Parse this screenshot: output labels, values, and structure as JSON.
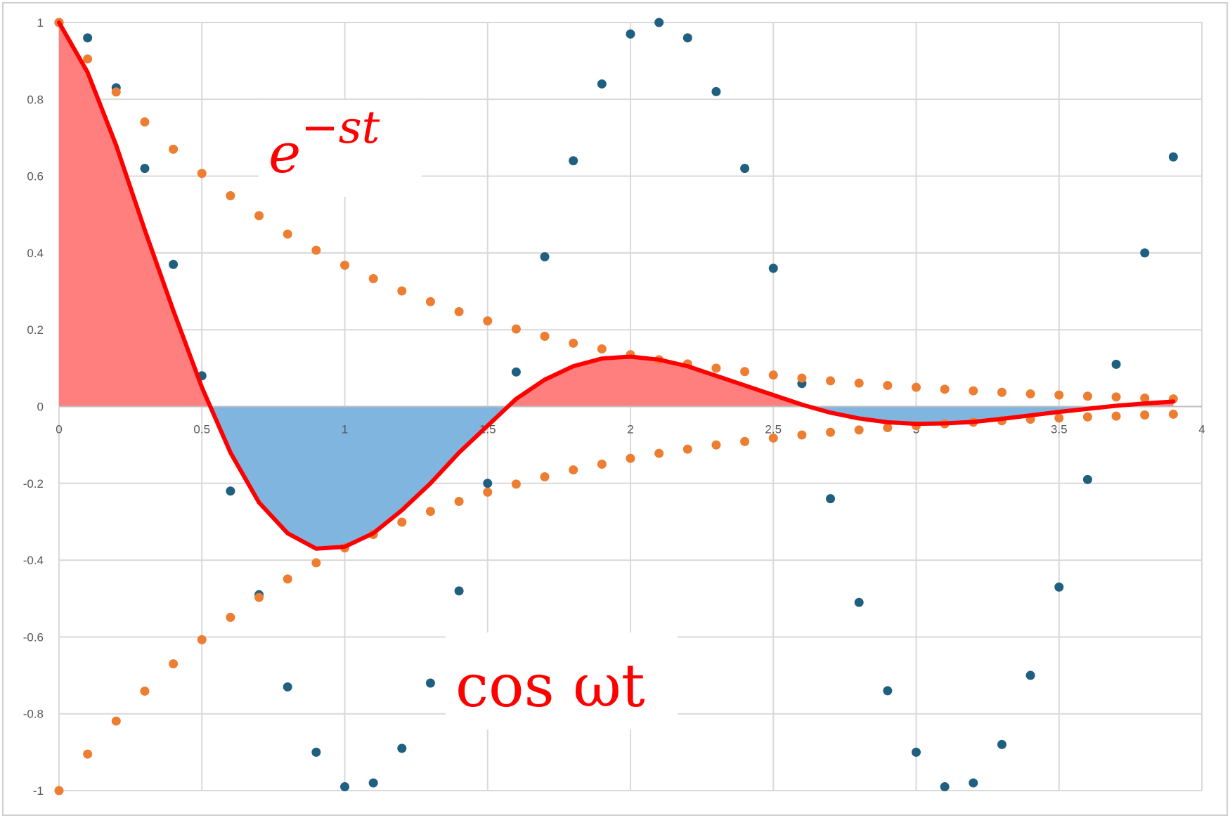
{
  "chart_data": {
    "type": "scatter",
    "xlim": [
      0,
      4
    ],
    "ylim": [
      -1,
      1
    ],
    "x_ticks": [
      "0",
      "0.5",
      "1",
      "1.5",
      "2",
      "2.5",
      "3",
      "3.5",
      "4"
    ],
    "y_ticks": [
      "1",
      "0.8",
      "0.6",
      "0.4",
      "0.2",
      "0",
      "-0.2",
      "-0.4",
      "-0.6",
      "-0.8",
      "-1"
    ],
    "grid": true,
    "legend": "none",
    "annotations": [
      {
        "text": "e",
        "superscript": "−st"
      },
      {
        "text": "cos ωt"
      }
    ],
    "colors": {
      "product_line": "#ff0000",
      "positive_fill": "#ff7f7f",
      "negative_fill": "#7fb5df",
      "cosine_points": "#1f5f7f",
      "envelope_points": "#ed7d31",
      "gridline": "#d9d9d9"
    },
    "series": [
      {
        "marker": "dot",
        "color": "#1f5f7f",
        "x": [
          0,
          0.1,
          0.2,
          0.3,
          0.4,
          0.5,
          0.6,
          0.7,
          0.8,
          0.9,
          1.0,
          1.1,
          1.2,
          1.3,
          1.4,
          1.5,
          1.6,
          1.7,
          1.8,
          1.9,
          2.0,
          2.1,
          2.2,
          2.3,
          2.4,
          2.5,
          2.6,
          2.7,
          2.8,
          2.9,
          3.0,
          3.1,
          3.2,
          3.3,
          3.4,
          3.5,
          3.6,
          3.7,
          3.8,
          3.9
        ],
        "y": [
          1,
          0.96,
          0.83,
          0.62,
          0.37,
          0.08,
          -0.22,
          -0.49,
          -0.73,
          -0.9,
          -0.99,
          -0.98,
          -0.89,
          -0.72,
          -0.48,
          -0.2,
          0.09,
          0.39,
          0.64,
          0.84,
          0.97,
          1.0,
          0.96,
          0.82,
          0.62,
          0.36,
          0.06,
          -0.24,
          -0.51,
          -0.74,
          -0.9,
          -0.99,
          -0.98,
          -0.88,
          -0.7,
          -0.47,
          -0.19,
          0.11,
          0.4,
          0.65
        ]
      },
      {
        "marker": "dot",
        "color": "#ed7d31",
        "x": [
          0,
          0.1,
          0.2,
          0.3,
          0.4,
          0.5,
          0.6,
          0.7,
          0.8,
          0.9,
          1.0,
          1.1,
          1.2,
          1.3,
          1.4,
          1.5,
          1.6,
          1.7,
          1.8,
          1.9,
          2.0,
          2.1,
          2.2,
          2.3,
          2.4,
          2.5,
          2.6,
          2.7,
          2.8,
          2.9,
          3.0,
          3.1,
          3.2,
          3.3,
          3.4,
          3.5,
          3.6,
          3.7,
          3.8,
          3.9
        ],
        "y": [
          1,
          0.905,
          0.819,
          0.741,
          0.67,
          0.607,
          0.549,
          0.497,
          0.449,
          0.407,
          0.368,
          0.333,
          0.301,
          0.273,
          0.247,
          0.223,
          0.202,
          0.183,
          0.165,
          0.15,
          0.135,
          0.122,
          0.111,
          0.1,
          0.091,
          0.082,
          0.074,
          0.067,
          0.061,
          0.055,
          0.05,
          0.045,
          0.041,
          0.037,
          0.033,
          0.03,
          0.027,
          0.025,
          0.022,
          0.02
        ]
      },
      {
        "marker": "dot",
        "color": "#ed7d31",
        "x": [
          0,
          0.1,
          0.2,
          0.3,
          0.4,
          0.5,
          0.6,
          0.7,
          0.8,
          0.9,
          1.0,
          1.1,
          1.2,
          1.3,
          1.4,
          1.5,
          1.6,
          1.7,
          1.8,
          1.9,
          2.0,
          2.1,
          2.2,
          2.3,
          2.4,
          2.5,
          2.6,
          2.7,
          2.8,
          2.9,
          3.0,
          3.1,
          3.2,
          3.3,
          3.4,
          3.5,
          3.6,
          3.7,
          3.8,
          3.9
        ],
        "y": [
          -1,
          -0.905,
          -0.819,
          -0.741,
          -0.67,
          -0.607,
          -0.549,
          -0.497,
          -0.449,
          -0.407,
          -0.368,
          -0.333,
          -0.301,
          -0.273,
          -0.247,
          -0.223,
          -0.202,
          -0.183,
          -0.165,
          -0.15,
          -0.135,
          -0.122,
          -0.111,
          -0.1,
          -0.091,
          -0.082,
          -0.074,
          -0.067,
          -0.061,
          -0.055,
          -0.05,
          -0.045,
          -0.041,
          -0.037,
          -0.033,
          -0.03,
          -0.027,
          -0.025,
          -0.022,
          -0.02
        ]
      },
      {
        "marker": "line",
        "color": "#ff0000",
        "area_fill": "sign",
        "x": [
          0,
          0.1,
          0.2,
          0.3,
          0.4,
          0.5,
          0.6,
          0.7,
          0.8,
          0.9,
          1.0,
          1.1,
          1.2,
          1.3,
          1.4,
          1.5,
          1.6,
          1.7,
          1.8,
          1.9,
          2.0,
          2.1,
          2.2,
          2.3,
          2.4,
          2.5,
          2.6,
          2.7,
          2.8,
          2.9,
          3.0,
          3.1,
          3.2,
          3.3,
          3.4,
          3.5,
          3.6,
          3.7,
          3.8,
          3.9
        ],
        "y": [
          1,
          0.87,
          0.68,
          0.46,
          0.25,
          0.05,
          -0.12,
          -0.25,
          -0.33,
          -0.37,
          -0.365,
          -0.33,
          -0.27,
          -0.2,
          -0.12,
          -0.05,
          0.02,
          0.07,
          0.105,
          0.125,
          0.13,
          0.122,
          0.105,
          0.08,
          0.055,
          0.03,
          0.005,
          -0.016,
          -0.031,
          -0.041,
          -0.045,
          -0.044,
          -0.04,
          -0.032,
          -0.023,
          -0.014,
          -0.006,
          0.002,
          0.008,
          0.013
        ]
      }
    ]
  }
}
